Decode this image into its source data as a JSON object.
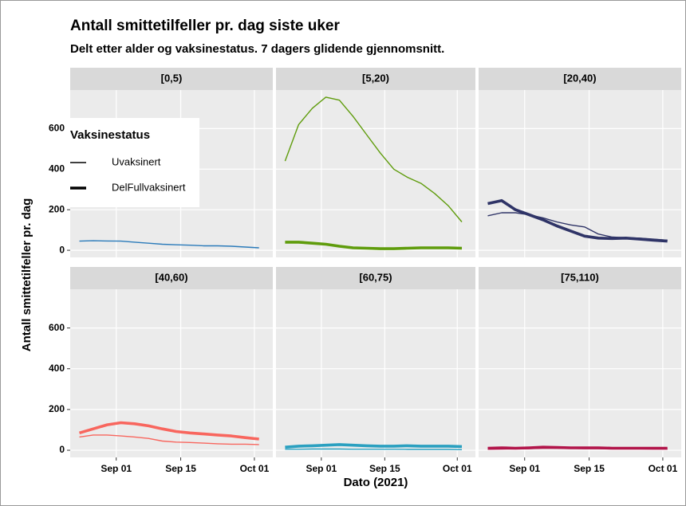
{
  "chart_data": {
    "type": "line",
    "title": "Antall smittetilfeller pr. dag siste uker",
    "subtitle": "Delt etter alder og vaksinestatus. 7 dagers glidende gjennomsnitt.",
    "x_label": "Dato (2021)",
    "y_label": "Antall smittetilfeller pr. dag",
    "legend_title": "Vaksinestatus",
    "legend_position": "top-left",
    "grid": true,
    "x": [
      "2021-08-24",
      "2021-08-27",
      "2021-08-30",
      "2021-09-02",
      "2021-09-05",
      "2021-09-08",
      "2021-09-11",
      "2021-09-14",
      "2021-09-17",
      "2021-09-20",
      "2021-09-23",
      "2021-09-26",
      "2021-09-29",
      "2021-10-02"
    ],
    "xlim": [
      "2021-08-22",
      "2021-10-05"
    ],
    "xticks": [
      {
        "value": "2021-09-01",
        "label": "Sep 01"
      },
      {
        "value": "2021-09-15",
        "label": "Sep 15"
      },
      {
        "value": "2021-10-01",
        "label": "Oct 01"
      }
    ],
    "ylim": [
      -35,
      790
    ],
    "yticks": [
      0,
      200,
      400,
      600
    ],
    "facets": [
      {
        "label": "[0,5)",
        "series": [
          {
            "name": "Uvaksinert",
            "color": "#2b7bba",
            "values": [
              45,
              47,
              46,
              45,
              40,
              35,
              30,
              27,
              25,
              22,
              22,
              20,
              16,
              12
            ]
          }
        ]
      },
      {
        "label": "[5,20)",
        "series": [
          {
            "name": "Uvaksinert",
            "color": "#5f9c0c",
            "values": [
              440,
              620,
              700,
              755,
              740,
              660,
              570,
              480,
              400,
              360,
              330,
              280,
              220,
              140
            ]
          },
          {
            "name": "DelFullvaksinert",
            "color": "#5f9c0c",
            "values": [
              40,
              40,
              35,
              30,
              20,
              12,
              10,
              8,
              8,
              10,
              12,
              12,
              12,
              10
            ]
          }
        ]
      },
      {
        "label": "[20,40)",
        "series": [
          {
            "name": "Uvaksinert",
            "color": "#2f3467",
            "values": [
              170,
              185,
              185,
              175,
              160,
              140,
              125,
              115,
              80,
              65,
              62,
              60,
              55,
              50
            ]
          },
          {
            "name": "DelFullvaksinert",
            "color": "#2f3467",
            "values": [
              230,
              245,
              200,
              175,
              150,
              120,
              95,
              70,
              60,
              58,
              60,
              55,
              50,
              45
            ]
          }
        ]
      },
      {
        "label": "[40,60)",
        "series": [
          {
            "name": "Uvaksinert",
            "color": "#f8665e",
            "values": [
              65,
              75,
              75,
              70,
              65,
              58,
              45,
              40,
              38,
              35,
              32,
              30,
              30,
              28
            ]
          },
          {
            "name": "DelFullvaksinert",
            "color": "#f8665e",
            "values": [
              85,
              105,
              125,
              135,
              130,
              120,
              105,
              92,
              85,
              80,
              75,
              70,
              62,
              55
            ]
          }
        ]
      },
      {
        "label": "[60,75)",
        "series": [
          {
            "name": "Uvaksinert",
            "color": "#2aa0c0",
            "values": [
              5,
              5,
              6,
              6,
              6,
              5,
              5,
              5,
              5,
              4,
              4,
              4,
              4,
              3
            ]
          },
          {
            "name": "DelFullvaksinert",
            "color": "#2aa0c0",
            "values": [
              15,
              20,
              22,
              25,
              28,
              25,
              22,
              20,
              20,
              22,
              20,
              20,
              20,
              18
            ]
          }
        ]
      },
      {
        "label": "[75,110)",
        "series": [
          {
            "name": "Uvaksinert",
            "color": "#b2154a",
            "values": [
              5,
              6,
              7,
              8,
              10,
              10,
              9,
              8,
              8,
              7,
              7,
              7,
              6,
              6
            ]
          },
          {
            "name": "DelFullvaksinert",
            "color": "#b2154a",
            "values": [
              10,
              12,
              10,
              12,
              15,
              14,
              12,
              12,
              12,
              10,
              10,
              10,
              10,
              10
            ]
          }
        ]
      }
    ]
  }
}
